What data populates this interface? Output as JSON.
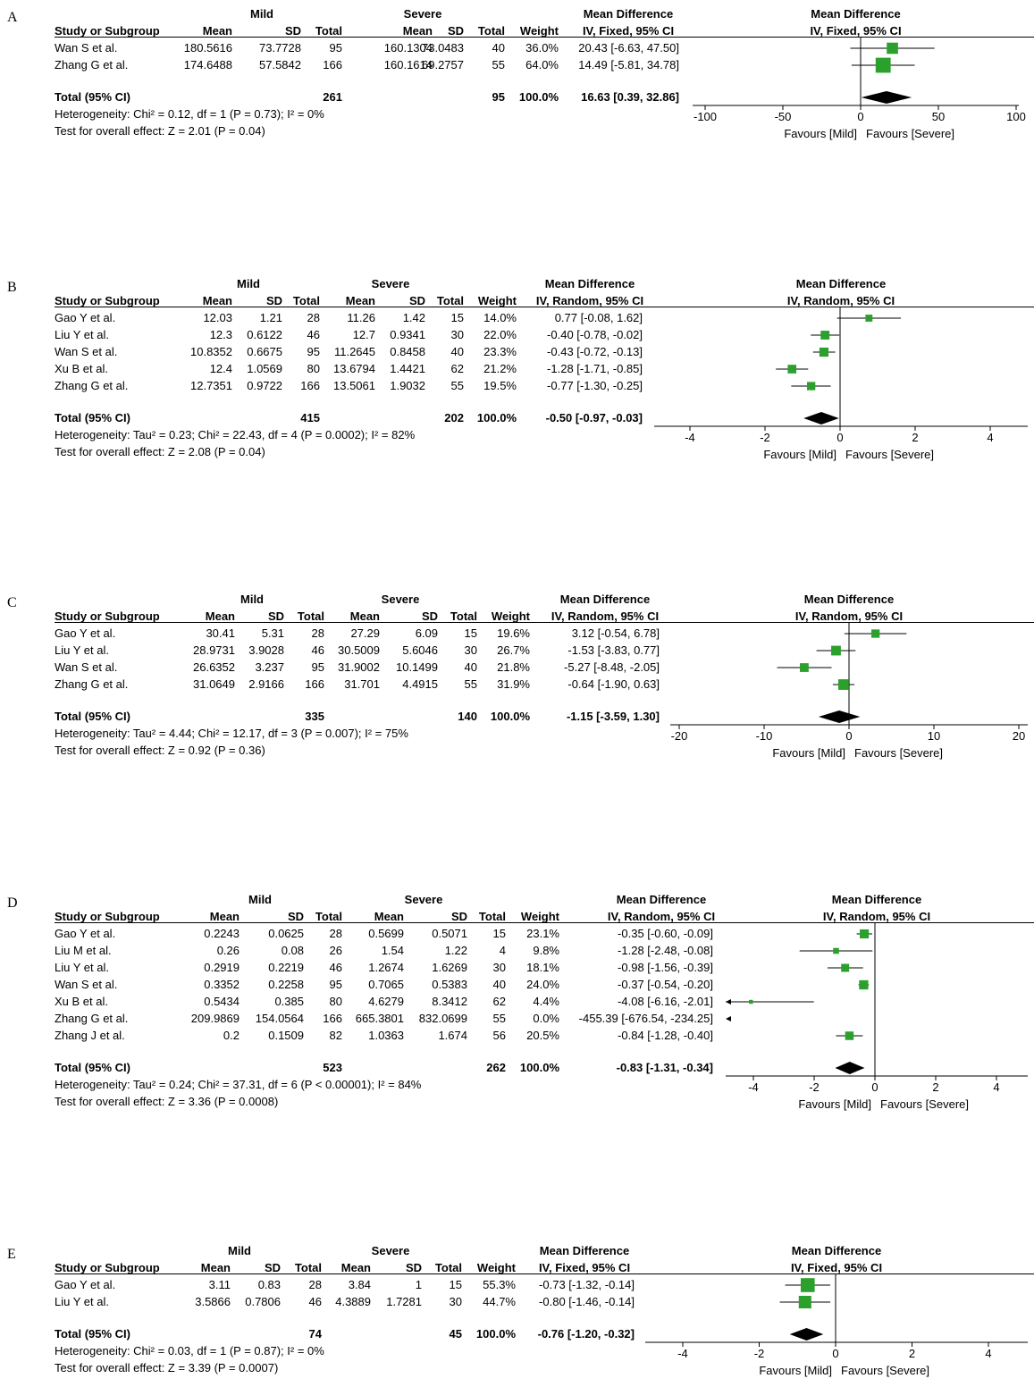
{
  "colors": {
    "marker": "#2ca02c",
    "line": "#000000",
    "diamond": "#000000"
  },
  "panels": [
    {
      "letter": "A",
      "group1": "Mild",
      "group2": "Severe",
      "header": {
        "study": "Study or Subgroup",
        "mean1": "Mean",
        "sd1": "SD",
        "total1": "Total",
        "mean2": "Mean",
        "sd2": "SD",
        "total2": "Total",
        "weight": "Weight",
        "md": "Mean Difference",
        "md_method": "IV, Fixed, 95% CI",
        "plot_title": "Mean Difference",
        "plot_method": "IV, Fixed, 95% CI"
      },
      "studies": [
        {
          "name": "Wan S et al.",
          "mean1": "180.5616",
          "sd1": "73.7728",
          "total1": "95",
          "mean2": "160.1304",
          "sd2": "73.0483",
          "total2": "40",
          "weight": "36.0%",
          "ci": "20.43 [-6.63, 47.50]"
        },
        {
          "name": "Zhang G et al.",
          "mean1": "174.6488",
          "sd1": "57.5842",
          "total1": "166",
          "mean2": "160.1614",
          "sd2": "69.2757",
          "total2": "55",
          "weight": "64.0%",
          "ci": "14.49 [-5.81, 34.78]"
        }
      ],
      "total": {
        "label": "Total (95% CI)",
        "total1": "261",
        "total2": "95",
        "weight": "100.0%",
        "ci": "16.63 [0.39, 32.86]"
      },
      "heterogeneity": "Heterogeneity: Chi² = 0.12, df = 1 (P = 0.73); I² = 0%",
      "overall": "Test for overall effect: Z = 2.01 (P = 0.04)",
      "favours_left": "Favours [Mild]",
      "favours_right": "Favours [Severe]"
    },
    {
      "letter": "B",
      "group1": "Mild",
      "group2": "Severe",
      "header": {
        "study": "Study or Subgroup",
        "mean1": "Mean",
        "sd1": "SD",
        "total1": "Total",
        "mean2": "Mean",
        "sd2": "SD",
        "total2": "Total",
        "weight": "Weight",
        "md": "Mean Difference",
        "md_method": "IV, Random, 95% CI",
        "plot_title": "Mean Difference",
        "plot_method": "IV, Random, 95% CI"
      },
      "studies": [
        {
          "name": "Gao Y et al.",
          "mean1": "12.03",
          "sd1": "1.21",
          "total1": "28",
          "mean2": "11.26",
          "sd2": "1.42",
          "total2": "15",
          "weight": "14.0%",
          "ci": "0.77 [-0.08, 1.62]"
        },
        {
          "name": "Liu Y et al.",
          "mean1": "12.3",
          "sd1": "0.6122",
          "total1": "46",
          "mean2": "12.7",
          "sd2": "0.9341",
          "total2": "30",
          "weight": "22.0%",
          "ci": "-0.40 [-0.78, -0.02]"
        },
        {
          "name": "Wan S et al.",
          "mean1": "10.8352",
          "sd1": "0.6675",
          "total1": "95",
          "mean2": "11.2645",
          "sd2": "0.8458",
          "total2": "40",
          "weight": "23.3%",
          "ci": "-0.43 [-0.72, -0.13]"
        },
        {
          "name": "Xu B et al.",
          "mean1": "12.4",
          "sd1": "1.0569",
          "total1": "80",
          "mean2": "13.6794",
          "sd2": "1.4421",
          "total2": "62",
          "weight": "21.2%",
          "ci": "-1.28 [-1.71, -0.85]"
        },
        {
          "name": "Zhang G et al.",
          "mean1": "12.7351",
          "sd1": "0.9722",
          "total1": "166",
          "mean2": "13.5061",
          "sd2": "1.9032",
          "total2": "55",
          "weight": "19.5%",
          "ci": "-0.77 [-1.30, -0.25]"
        }
      ],
      "total": {
        "label": "Total (95% CI)",
        "total1": "415",
        "total2": "202",
        "weight": "100.0%",
        "ci": "-0.50 [-0.97, -0.03]"
      },
      "heterogeneity": "Heterogeneity: Tau² = 0.23; Chi² = 22.43, df = 4 (P = 0.0002); I² = 82%",
      "overall": "Test for overall effect: Z = 2.08 (P = 0.04)",
      "favours_left": "Favours [Mild]",
      "favours_right": "Favours [Severe]"
    },
    {
      "letter": "C",
      "group1": "Mild",
      "group2": "Severe",
      "header": {
        "study": "Study or Subgroup",
        "mean1": "Mean",
        "sd1": "SD",
        "total1": "Total",
        "mean2": "Mean",
        "sd2": "SD",
        "total2": "Total",
        "weight": "Weight",
        "md": "Mean Difference",
        "md_method": "IV, Random, 95% CI",
        "plot_title": "Mean Difference",
        "plot_method": "IV, Random, 95% CI"
      },
      "studies": [
        {
          "name": "Gao Y et al.",
          "mean1": "30.41",
          "sd1": "5.31",
          "total1": "28",
          "mean2": "27.29",
          "sd2": "6.09",
          "total2": "15",
          "weight": "19.6%",
          "ci": "3.12 [-0.54, 6.78]"
        },
        {
          "name": "Liu Y et al.",
          "mean1": "28.9731",
          "sd1": "3.9028",
          "total1": "46",
          "mean2": "30.5009",
          "sd2": "5.6046",
          "total2": "30",
          "weight": "26.7%",
          "ci": "-1.53 [-3.83, 0.77]"
        },
        {
          "name": "Wan S et al.",
          "mean1": "26.6352",
          "sd1": "3.237",
          "total1": "95",
          "mean2": "31.9002",
          "sd2": "10.1499",
          "total2": "40",
          "weight": "21.8%",
          "ci": "-5.27 [-8.48, -2.05]"
        },
        {
          "name": "Zhang G et al.",
          "mean1": "31.0649",
          "sd1": "2.9166",
          "total1": "166",
          "mean2": "31.701",
          "sd2": "4.4915",
          "total2": "55",
          "weight": "31.9%",
          "ci": "-0.64 [-1.90, 0.63]"
        }
      ],
      "total": {
        "label": "Total (95% CI)",
        "total1": "335",
        "total2": "140",
        "weight": "100.0%",
        "ci": "-1.15 [-3.59, 1.30]"
      },
      "heterogeneity": "Heterogeneity: Tau² = 4.44; Chi² = 12.17, df = 3 (P = 0.007); I² = 75%",
      "overall": "Test for overall effect: Z = 0.92 (P = 0.36)",
      "favours_left": "Favours [Mild]",
      "favours_right": "Favours [Severe]"
    },
    {
      "letter": "D",
      "group1": "Mild",
      "group2": "Severe",
      "header": {
        "study": "Study or Subgroup",
        "mean1": "Mean",
        "sd1": "SD",
        "total1": "Total",
        "mean2": "Mean",
        "sd2": "SD",
        "total2": "Total",
        "weight": "Weight",
        "md": "Mean Difference",
        "md_method": "IV, Random, 95% CI",
        "plot_title": "Mean Difference",
        "plot_method": "IV, Random, 95% CI"
      },
      "studies": [
        {
          "name": "Gao Y et al.",
          "mean1": "0.2243",
          "sd1": "0.0625",
          "total1": "28",
          "mean2": "0.5699",
          "sd2": "0.5071",
          "total2": "15",
          "weight": "23.1%",
          "ci": "-0.35 [-0.60, -0.09]"
        },
        {
          "name": "Liu M et al.",
          "mean1": "0.26",
          "sd1": "0.08",
          "total1": "26",
          "mean2": "1.54",
          "sd2": "1.22",
          "total2": "4",
          "weight": "9.8%",
          "ci": "-1.28 [-2.48, -0.08]"
        },
        {
          "name": "Liu Y et al.",
          "mean1": "0.2919",
          "sd1": "0.2219",
          "total1": "46",
          "mean2": "1.2674",
          "sd2": "1.6269",
          "total2": "30",
          "weight": "18.1%",
          "ci": "-0.98 [-1.56, -0.39]"
        },
        {
          "name": "Wan S et al.",
          "mean1": "0.3352",
          "sd1": "0.2258",
          "total1": "95",
          "mean2": "0.7065",
          "sd2": "0.5383",
          "total2": "40",
          "weight": "24.0%",
          "ci": "-0.37 [-0.54, -0.20]"
        },
        {
          "name": "Xu B et al.",
          "mean1": "0.5434",
          "sd1": "0.385",
          "total1": "80",
          "mean2": "4.6279",
          "sd2": "8.3412",
          "total2": "62",
          "weight": "4.4%",
          "ci": "-4.08 [-6.16, -2.01]"
        },
        {
          "name": "Zhang G et al.",
          "mean1": "209.9869",
          "sd1": "154.0564",
          "total1": "166",
          "mean2": "665.3801",
          "sd2": "832.0699",
          "total2": "55",
          "weight": "0.0%",
          "ci": "-455.39 [-676.54, -234.25]"
        },
        {
          "name": "Zhang J et al.",
          "mean1": "0.2",
          "sd1": "0.1509",
          "total1": "82",
          "mean2": "1.0363",
          "sd2": "1.674",
          "total2": "56",
          "weight": "20.5%",
          "ci": "-0.84 [-1.28, -0.40]"
        }
      ],
      "total": {
        "label": "Total (95% CI)",
        "total1": "523",
        "total2": "262",
        "weight": "100.0%",
        "ci": "-0.83 [-1.31, -0.34]"
      },
      "heterogeneity": "Heterogeneity: Tau² = 0.24; Chi² = 37.31, df = 6 (P < 0.00001); I² = 84%",
      "overall": "Test for overall effect: Z = 3.36 (P = 0.0008)",
      "favours_left": "Favours [Mild]",
      "favours_right": "Favours [Severe]"
    },
    {
      "letter": "E",
      "group1": "Mild",
      "group2": "Severe",
      "header": {
        "study": "Study or Subgroup",
        "mean1": "Mean",
        "sd1": "SD",
        "total1": "Total",
        "mean2": "Mean",
        "sd2": "SD",
        "total2": "Total",
        "weight": "Weight",
        "md": "Mean Difference",
        "md_method": "IV, Fixed, 95% CI",
        "plot_title": "Mean Difference",
        "plot_method": "IV, Fixed, 95% CI"
      },
      "studies": [
        {
          "name": "Gao Y et al.",
          "mean1": "3.11",
          "sd1": "0.83",
          "total1": "28",
          "mean2": "3.84",
          "sd2": "1",
          "total2": "15",
          "weight": "55.3%",
          "ci": "-0.73 [-1.32, -0.14]"
        },
        {
          "name": "Liu Y et al.",
          "mean1": "3.5866",
          "sd1": "0.7806",
          "total1": "46",
          "mean2": "4.3889",
          "sd2": "1.7281",
          "total2": "30",
          "weight": "44.7%",
          "ci": "-0.80 [-1.46, -0.14]"
        }
      ],
      "total": {
        "label": "Total (95% CI)",
        "total1": "74",
        "total2": "45",
        "weight": "100.0%",
        "ci": "-0.76 [-1.20, -0.32]"
      },
      "heterogeneity": "Heterogeneity: Chi² = 0.03, df = 1 (P = 0.87); I² = 0%",
      "overall": "Test for overall effect: Z = 3.39 (P = 0.0007)",
      "favours_left": "Favours [Mild]",
      "favours_right": "Favours [Severe]"
    }
  ],
  "chart_data": [
    {
      "type": "scatter",
      "panel": "A",
      "xlim": [
        -100,
        100
      ],
      "ticks": [
        -100,
        -50,
        0,
        50,
        100
      ],
      "tick_labels": [
        "-100",
        "-50",
        "0",
        "50",
        "100"
      ],
      "points": [
        {
          "study": "Wan S et al.",
          "estimate": 20.43,
          "lower": -6.63,
          "upper": 47.5,
          "weight": 36.0
        },
        {
          "study": "Zhang G et al.",
          "estimate": 14.49,
          "lower": -5.81,
          "upper": 34.78,
          "weight": 64.0
        }
      ],
      "pooled": {
        "estimate": 16.63,
        "lower": 0.39,
        "upper": 32.86
      }
    },
    {
      "type": "scatter",
      "panel": "B",
      "xlim": [
        -5,
        5
      ],
      "ticks": [
        -4,
        -2,
        0,
        2,
        4
      ],
      "tick_labels": [
        "-4",
        "-2",
        "0",
        "2",
        "4"
      ],
      "points": [
        {
          "study": "Gao Y et al.",
          "estimate": 0.77,
          "lower": -0.08,
          "upper": 1.62,
          "weight": 14.0
        },
        {
          "study": "Liu Y et al.",
          "estimate": -0.4,
          "lower": -0.78,
          "upper": -0.02,
          "weight": 22.0
        },
        {
          "study": "Wan S et al.",
          "estimate": -0.43,
          "lower": -0.72,
          "upper": -0.13,
          "weight": 23.3
        },
        {
          "study": "Xu B et al.",
          "estimate": -1.28,
          "lower": -1.71,
          "upper": -0.85,
          "weight": 21.2
        },
        {
          "study": "Zhang G et al.",
          "estimate": -0.77,
          "lower": -1.3,
          "upper": -0.25,
          "weight": 19.5
        }
      ],
      "pooled": {
        "estimate": -0.5,
        "lower": -0.97,
        "upper": -0.03
      }
    },
    {
      "type": "scatter",
      "panel": "C",
      "xlim": [
        -20,
        20
      ],
      "ticks": [
        -20,
        -10,
        0,
        10,
        20
      ],
      "tick_labels": [
        "-20",
        "-10",
        "0",
        "10",
        "20"
      ],
      "points": [
        {
          "study": "Gao Y et al.",
          "estimate": 3.12,
          "lower": -0.54,
          "upper": 6.78,
          "weight": 19.6
        },
        {
          "study": "Liu Y et al.",
          "estimate": -1.53,
          "lower": -3.83,
          "upper": 0.77,
          "weight": 26.7
        },
        {
          "study": "Wan S et al.",
          "estimate": -5.27,
          "lower": -8.48,
          "upper": -2.05,
          "weight": 21.8
        },
        {
          "study": "Zhang G et al.",
          "estimate": -0.64,
          "lower": -1.9,
          "upper": 0.63,
          "weight": 31.9
        }
      ],
      "pooled": {
        "estimate": -1.15,
        "lower": -3.59,
        "upper": 1.3
      }
    },
    {
      "type": "scatter",
      "panel": "D",
      "xlim": [
        -5,
        5
      ],
      "ticks": [
        -4,
        -2,
        0,
        2,
        4
      ],
      "tick_labels": [
        "-4",
        "-2",
        "0",
        "2",
        "4"
      ],
      "points": [
        {
          "study": "Gao Y et al.",
          "estimate": -0.35,
          "lower": -0.6,
          "upper": -0.09,
          "weight": 23.1
        },
        {
          "study": "Liu M et al.",
          "estimate": -1.28,
          "lower": -2.48,
          "upper": -0.08,
          "weight": 9.8
        },
        {
          "study": "Liu Y et al.",
          "estimate": -0.98,
          "lower": -1.56,
          "upper": -0.39,
          "weight": 18.1
        },
        {
          "study": "Wan S et al.",
          "estimate": -0.37,
          "lower": -0.54,
          "upper": -0.2,
          "weight": 24.0
        },
        {
          "study": "Xu B et al.",
          "estimate": -4.08,
          "lower": -6.16,
          "upper": -2.01,
          "weight": 4.4
        },
        {
          "study": "Zhang G et al.",
          "estimate": -455.39,
          "lower": -676.54,
          "upper": -234.25,
          "weight": 0.0
        },
        {
          "study": "Zhang J et al.",
          "estimate": -0.84,
          "lower": -1.28,
          "upper": -0.4,
          "weight": 20.5
        }
      ],
      "pooled": {
        "estimate": -0.83,
        "lower": -1.31,
        "upper": -0.34
      }
    },
    {
      "type": "scatter",
      "panel": "E",
      "xlim": [
        -5,
        5
      ],
      "ticks": [
        -4,
        -2,
        0,
        2,
        4
      ],
      "tick_labels": [
        "-4",
        "-2",
        "0",
        "2",
        "4"
      ],
      "points": [
        {
          "study": "Gao Y et al.",
          "estimate": -0.73,
          "lower": -1.32,
          "upper": -0.14,
          "weight": 55.3
        },
        {
          "study": "Liu Y et al.",
          "estimate": -0.8,
          "lower": -1.46,
          "upper": -0.14,
          "weight": 44.7
        }
      ],
      "pooled": {
        "estimate": -0.76,
        "lower": -1.2,
        "upper": -0.32
      }
    }
  ]
}
